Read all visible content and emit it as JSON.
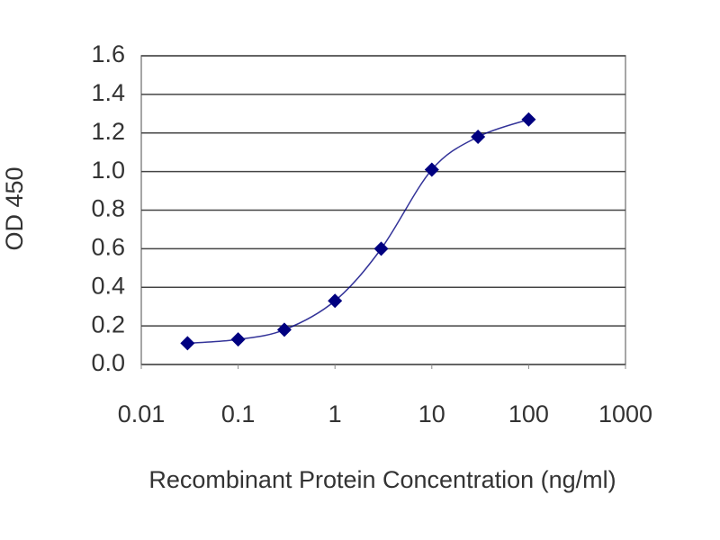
{
  "chart_data": {
    "type": "line",
    "x_label": "Recombinant Protein Concentration (ng/ml)",
    "y_label": "OD 450",
    "x": [
      0.03,
      0.1,
      0.3,
      1,
      3,
      10,
      30,
      100
    ],
    "values": [
      0.11,
      0.13,
      0.18,
      0.33,
      0.6,
      1.01,
      1.18,
      1.27
    ],
    "color": "#000080",
    "x_log": true,
    "xlim": [
      0.01,
      1000
    ],
    "xticks": [
      0.01,
      0.1,
      1,
      10,
      100,
      1000
    ],
    "ylim": [
      0,
      1.6
    ],
    "yticks": [
      {
        "value": 0,
        "label": "0.0"
      },
      0.2,
      0.4,
      0.6,
      0.8,
      {
        "value": 1,
        "label": "1.0"
      },
      1.2,
      1.4,
      1.6
    ],
    "grid": true
  }
}
